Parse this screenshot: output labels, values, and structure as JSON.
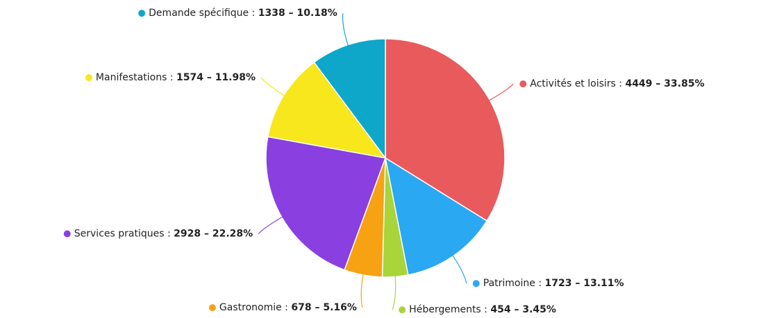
{
  "chart_data": {
    "type": "pie",
    "categories": [
      "Activités et loisirs",
      "Patrimoine",
      "Hébergements",
      "Gastronomie",
      "Services pratiques",
      "Manifestations",
      "Demande spécifique"
    ],
    "values": [
      4449,
      1723,
      454,
      678,
      2928,
      1574,
      1338
    ],
    "value_labels": [
      "4449 – 33.85%",
      "1723 – 13.11%",
      "454 – 3.45%",
      "678 – 5.16%",
      "2928 – 22.28%",
      "1574 – 11.98%",
      "1338 – 10.18%"
    ],
    "label_separator": ":",
    "colors": [
      "#e85a5c",
      "#2aa8f2",
      "#a9d43a",
      "#f6a213",
      "#8a3fe0",
      "#f8e71c",
      "#0ea7c9"
    ]
  }
}
